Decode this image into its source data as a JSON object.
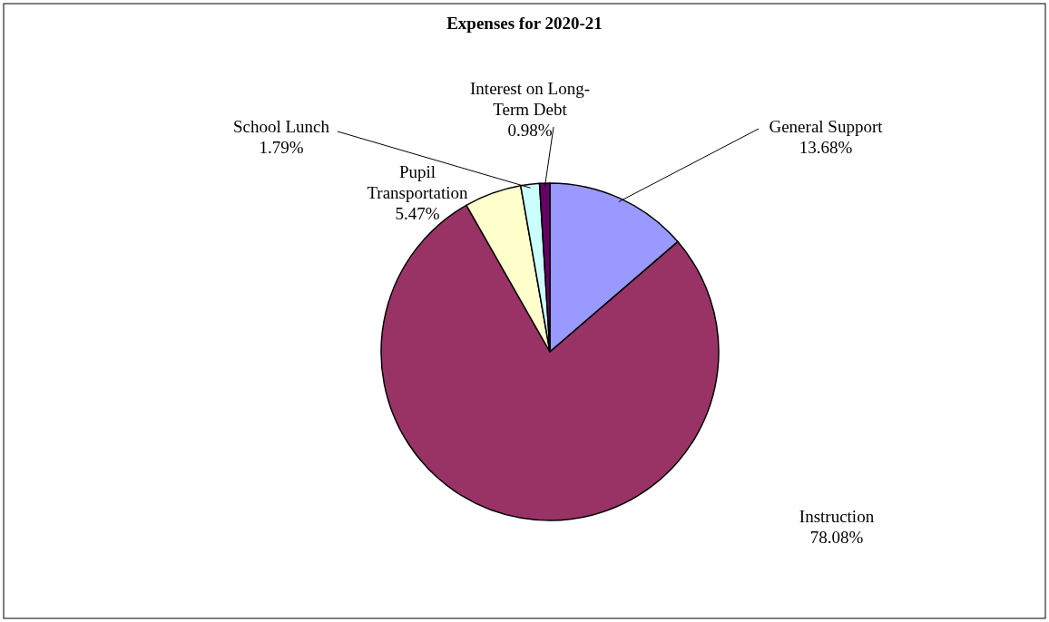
{
  "chart_data": {
    "type": "pie",
    "title": "Expenses for 2020-21",
    "categories": [
      "General Support",
      "Instruction",
      "Pupil Transportation",
      "School Lunch",
      "Interest on Long-Term Debt"
    ],
    "values": [
      13.68,
      78.08,
      5.47,
      1.79,
      0.98
    ],
    "colors": [
      "#9999ff",
      "#993366",
      "#ffffcc",
      "#ccffff",
      "#660066"
    ],
    "value_labels": [
      "13.68%",
      "78.08%",
      "5.47%",
      "1.79%",
      "0.98%"
    ]
  }
}
